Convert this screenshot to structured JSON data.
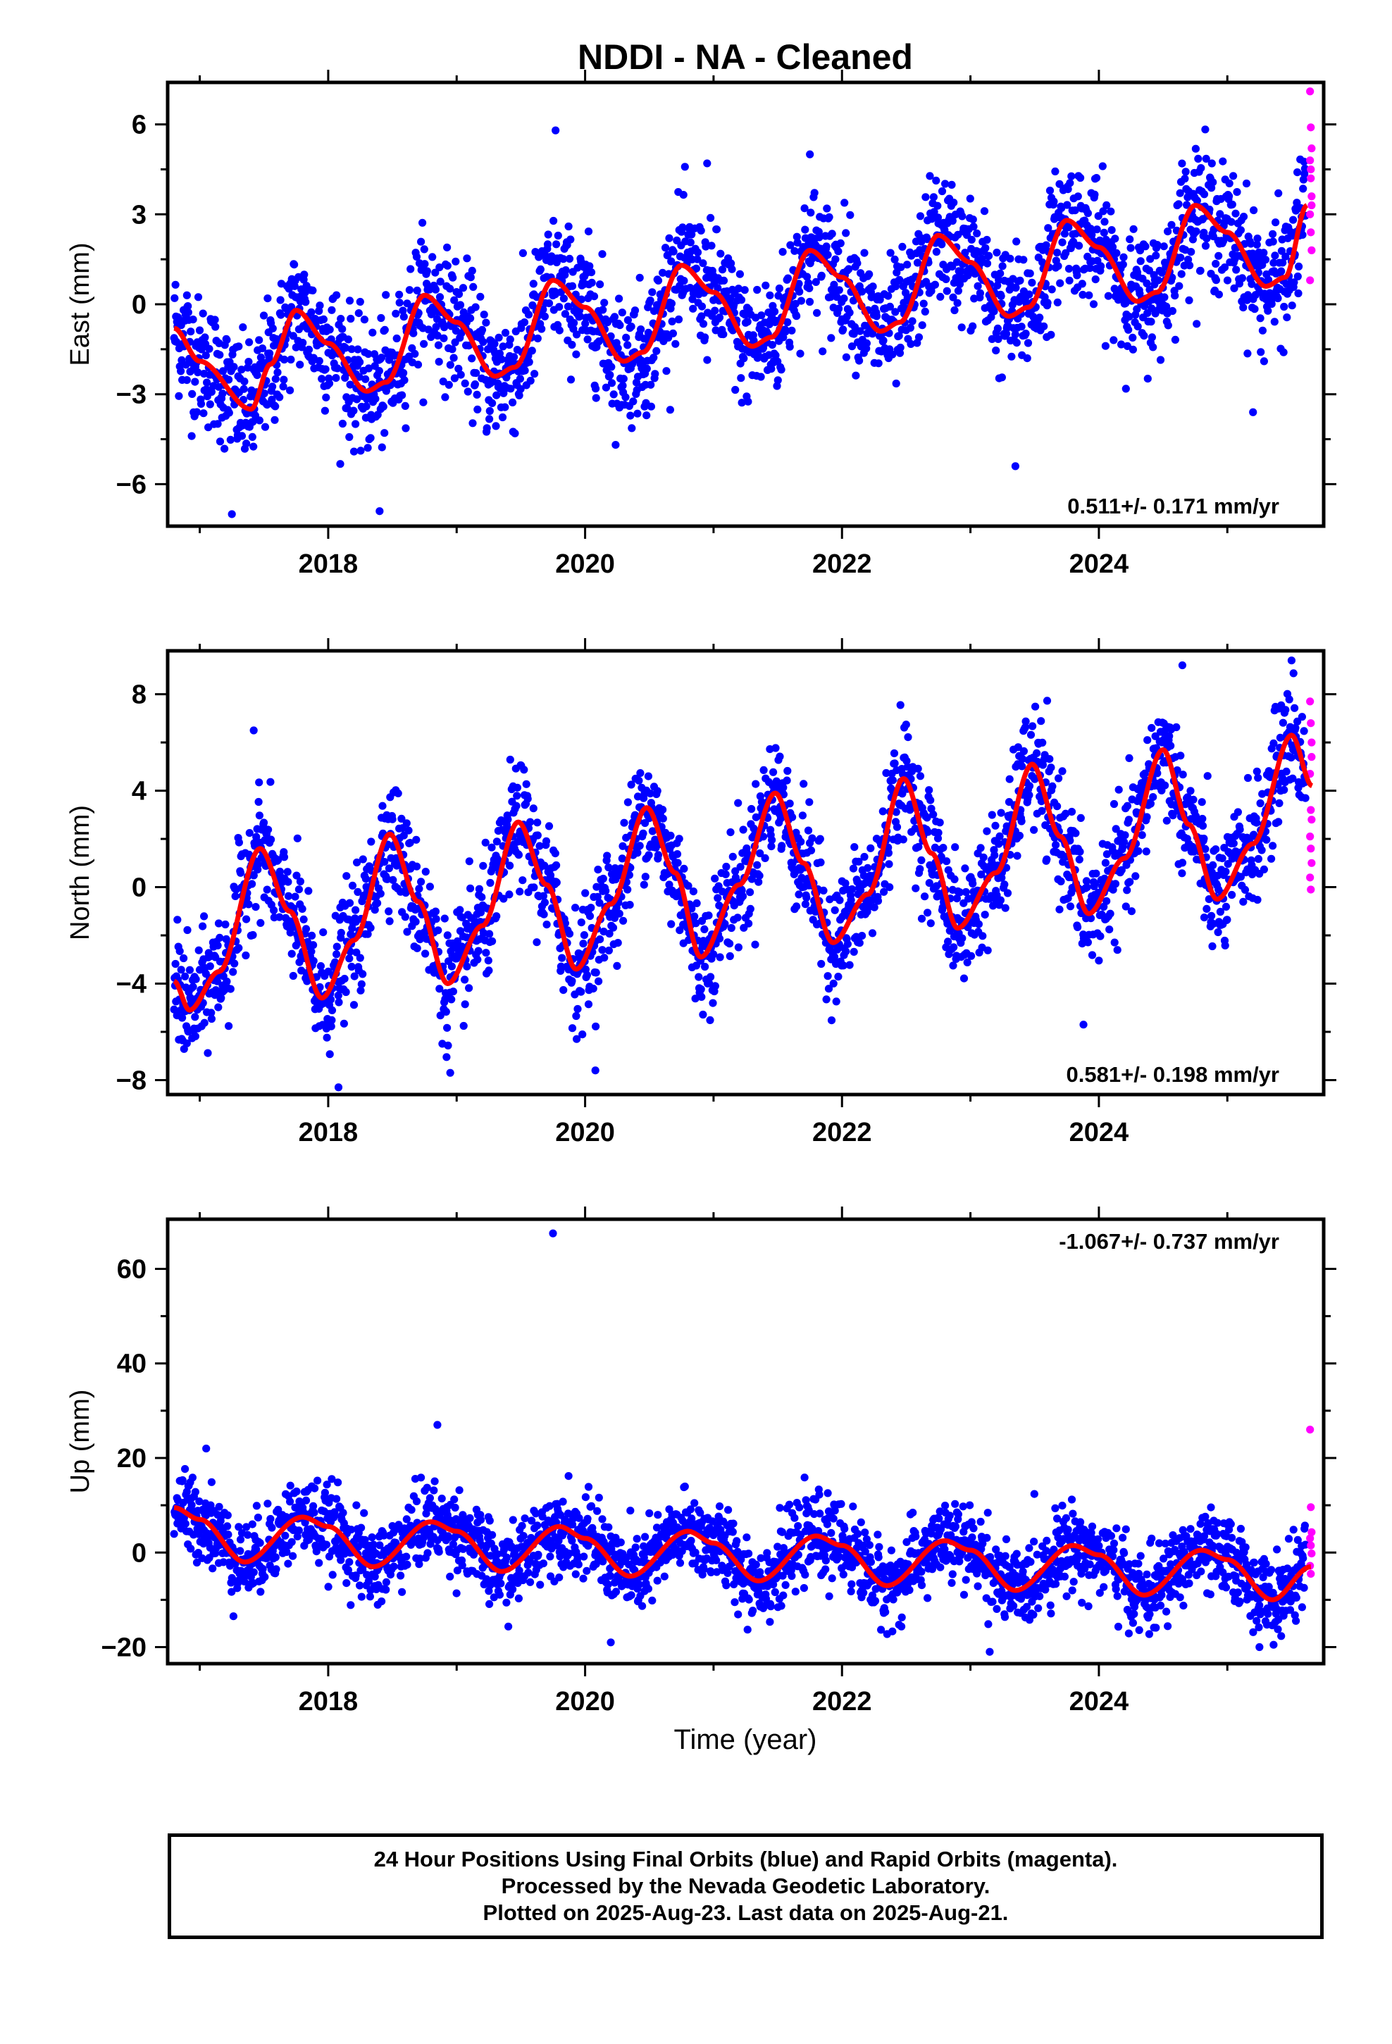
{
  "title": "NDDI  - NA - Cleaned",
  "xlabel": "Time (year)",
  "footer": {
    "line1": "24 Hour Positions Using Final Orbits (blue) and Rapid Orbits (magenta).",
    "line2": "Processed by the Nevada Geodetic Laboratory.",
    "line3": "Plotted on 2025-Aug-23. Last data on 2025-Aug-21."
  },
  "colors": {
    "final": "#0000ff",
    "rapid": "#ff00ff",
    "fit": "#ff0000",
    "axis": "#000000"
  },
  "chart_data": [
    {
      "type": "scatter",
      "name": "east",
      "ylabel": "East (mm)",
      "xlim": [
        2016.75,
        2025.75
      ],
      "ylim": [
        -7.4,
        7.4
      ],
      "xticks": [
        2018,
        2020,
        2022,
        2024
      ],
      "yticks": [
        6,
        3,
        0,
        -3,
        -6
      ],
      "ytick_labels": [
        "6",
        "3",
        "0",
        "−3",
        "−6"
      ],
      "rate_label": "0.511+/- 0.171 mm/yr",
      "rate_position": "bottom-right",
      "fit": {
        "x": [
          2016.8,
          2017.0,
          2017.4,
          2017.55,
          2017.75,
          2018.0,
          2018.3,
          2018.45,
          2018.75,
          2019.0,
          2019.3,
          2019.45,
          2019.75,
          2020.0,
          2020.3,
          2020.45,
          2020.75,
          2021.0,
          2021.3,
          2021.45,
          2021.75,
          2022.0,
          2022.3,
          2022.45,
          2022.75,
          2023.0,
          2023.3,
          2023.45,
          2023.75,
          2024.0,
          2024.3,
          2024.45,
          2024.75,
          2025.0,
          2025.3,
          2025.45,
          2025.62
        ],
        "y": [
          -0.8,
          -1.9,
          -3.5,
          -2.0,
          -0.2,
          -1.3,
          -2.9,
          -2.6,
          0.3,
          -0.6,
          -2.4,
          -2.1,
          0.8,
          -0.1,
          -1.9,
          -1.6,
          1.3,
          0.4,
          -1.4,
          -1.1,
          1.8,
          0.9,
          -0.9,
          -0.6,
          2.3,
          1.4,
          -0.4,
          -0.1,
          2.8,
          1.9,
          0.1,
          0.4,
          3.3,
          2.4,
          0.6,
          0.9,
          3.3
        ]
      },
      "scatter": {
        "noise": 1.05,
        "outliers": [
          [
            2019.77,
            5.8
          ],
          [
            2020.95,
            4.7
          ],
          [
            2021.75,
            5.0
          ],
          [
            2017.25,
            -7.0
          ],
          [
            2018.4,
            -6.9
          ],
          [
            2023.35,
            -5.4
          ],
          [
            2025.2,
            -3.6
          ],
          [
            2016.9,
            0.3
          ]
        ]
      },
      "rapid": {
        "x": 2025.65,
        "y": [
          7.1,
          5.9,
          5.2,
          4.8,
          4.2,
          3.6,
          3.0,
          2.4,
          1.8,
          0.8,
          4.5,
          3.3
        ]
      }
    },
    {
      "type": "scatter",
      "name": "north",
      "ylabel": "North (mm)",
      "xlim": [
        2016.75,
        2025.75
      ],
      "ylim": [
        -8.6,
        9.8
      ],
      "xticks": [
        2018,
        2020,
        2022,
        2024
      ],
      "yticks": [
        8,
        4,
        0,
        -4,
        -8
      ],
      "ytick_labels": [
        "8",
        "4",
        "0",
        "−4",
        "−8"
      ],
      "rate_label": "0.581+/- 0.198 mm/yr",
      "rate_position": "bottom-right",
      "fit": {
        "x": [
          2016.8,
          2016.92,
          2017.15,
          2017.47,
          2017.7,
          2017.95,
          2018.2,
          2018.48,
          2018.7,
          2018.93,
          2019.2,
          2019.48,
          2019.7,
          2019.93,
          2020.2,
          2020.48,
          2020.7,
          2020.9,
          2021.2,
          2021.48,
          2021.7,
          2021.93,
          2022.2,
          2022.48,
          2022.7,
          2022.9,
          2023.2,
          2023.48,
          2023.7,
          2023.92,
          2024.2,
          2024.5,
          2024.7,
          2024.92,
          2025.2,
          2025.5,
          2025.66
        ],
        "y": [
          -3.9,
          -5.1,
          -3.5,
          1.6,
          -1.0,
          -4.6,
          -2.2,
          2.2,
          -0.6,
          -4.0,
          -1.6,
          2.7,
          0.1,
          -3.4,
          -0.7,
          3.3,
          0.6,
          -2.9,
          0.1,
          3.9,
          1.0,
          -2.3,
          -0.3,
          4.5,
          1.4,
          -1.7,
          0.6,
          5.1,
          2.1,
          -1.1,
          1.2,
          5.7,
          2.6,
          -0.5,
          1.8,
          6.3,
          4.2
        ]
      },
      "scatter": {
        "noise": 1.2,
        "outliers": [
          [
            2024.65,
            9.2
          ],
          [
            2025.5,
            9.4
          ],
          [
            2018.08,
            -8.3
          ],
          [
            2020.08,
            -7.6
          ],
          [
            2018.95,
            -7.7
          ],
          [
            2017.42,
            6.5
          ],
          [
            2023.88,
            -5.7
          ]
        ]
      },
      "rapid": {
        "x": 2025.65,
        "y": [
          7.7,
          6.8,
          6.0,
          4.7,
          3.2,
          2.8,
          2.1,
          1.6,
          1.0,
          0.4,
          -0.1,
          5.4
        ]
      }
    },
    {
      "type": "scatter",
      "name": "up",
      "ylabel": "Up (mm)",
      "xlim": [
        2016.75,
        2025.75
      ],
      "ylim": [
        -23.5,
        70.5
      ],
      "xticks": [
        2018,
        2020,
        2022,
        2024
      ],
      "yticks": [
        60,
        40,
        20,
        0,
        -20
      ],
      "ytick_labels": [
        "60",
        "40",
        "20",
        "0",
        "−20"
      ],
      "rate_label": "-1.067+/- 0.737 mm/yr",
      "rate_position": "top-right",
      "fit": {
        "x": [
          2016.8,
          2017.0,
          2017.35,
          2017.8,
          2018.0,
          2018.35,
          2018.8,
          2019.0,
          2019.35,
          2019.8,
          2020.0,
          2020.35,
          2020.8,
          2021.0,
          2021.35,
          2021.8,
          2022.0,
          2022.35,
          2022.8,
          2023.0,
          2023.35,
          2023.8,
          2024.0,
          2024.35,
          2024.8,
          2025.0,
          2025.35,
          2025.65
        ],
        "y": [
          9.5,
          7.0,
          -2.0,
          7.5,
          5.5,
          -3.0,
          6.5,
          4.5,
          -4.0,
          5.5,
          3.0,
          -5.0,
          4.5,
          2.0,
          -6.0,
          3.5,
          1.5,
          -7.0,
          2.5,
          0.5,
          -8.0,
          1.5,
          -0.5,
          -9.0,
          0.5,
          -1.5,
          -10.0,
          -3.0
        ]
      },
      "scatter": {
        "noise": 4.2,
        "outliers": [
          [
            2019.75,
            67.5
          ],
          [
            2018.85,
            27.0
          ],
          [
            2017.05,
            22.0
          ],
          [
            2023.15,
            -21.0
          ],
          [
            2025.25,
            -20.0
          ],
          [
            2020.2,
            -19.0
          ]
        ]
      },
      "rapid": {
        "x": 2025.65,
        "y": [
          26.0,
          9.6,
          4.3,
          3.0,
          1.5,
          -0.2,
          -2.8,
          -4.5
        ]
      }
    }
  ]
}
